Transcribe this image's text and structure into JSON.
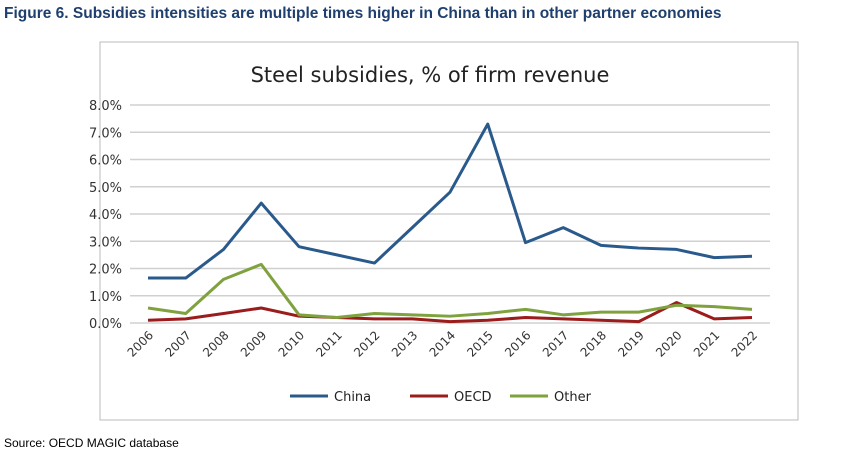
{
  "figure_title": "Figure 6. Subsidies intensities are multiple times higher in China than in other partner economies",
  "source": "Source: OECD MAGIC database",
  "chart_data": {
    "type": "line",
    "title": "Steel subsidies, % of firm revenue",
    "xlabel": "",
    "ylabel": "",
    "ylim": [
      0,
      8
    ],
    "yticks": [
      "0.0%",
      "1.0%",
      "2.0%",
      "3.0%",
      "4.0%",
      "5.0%",
      "6.0%",
      "7.0%",
      "8.0%"
    ],
    "categories": [
      "2006",
      "2007",
      "2008",
      "2009",
      "2010",
      "2011",
      "2012",
      "2013",
      "2014",
      "2015",
      "2016",
      "2017",
      "2018",
      "2019",
      "2020",
      "2021",
      "2022"
    ],
    "grid": true,
    "legend": "bottom",
    "series": [
      {
        "name": "China",
        "color": "#2a5a8c",
        "values": [
          1.65,
          1.65,
          2.7,
          4.4,
          2.8,
          2.5,
          2.2,
          3.5,
          4.8,
          7.3,
          2.95,
          3.5,
          2.85,
          2.75,
          2.7,
          2.4,
          2.45
        ]
      },
      {
        "name": "OECD",
        "color": "#9b1c1c",
        "values": [
          0.1,
          0.15,
          0.35,
          0.55,
          0.25,
          0.2,
          0.15,
          0.15,
          0.05,
          0.1,
          0.2,
          0.15,
          0.1,
          0.05,
          0.75,
          0.15,
          0.2
        ]
      },
      {
        "name": "Other",
        "color": "#7fa23f",
        "values": [
          0.55,
          0.35,
          1.6,
          2.15,
          0.3,
          0.2,
          0.35,
          0.3,
          0.25,
          0.35,
          0.5,
          0.3,
          0.4,
          0.4,
          0.65,
          0.6,
          0.5
        ]
      }
    ]
  }
}
